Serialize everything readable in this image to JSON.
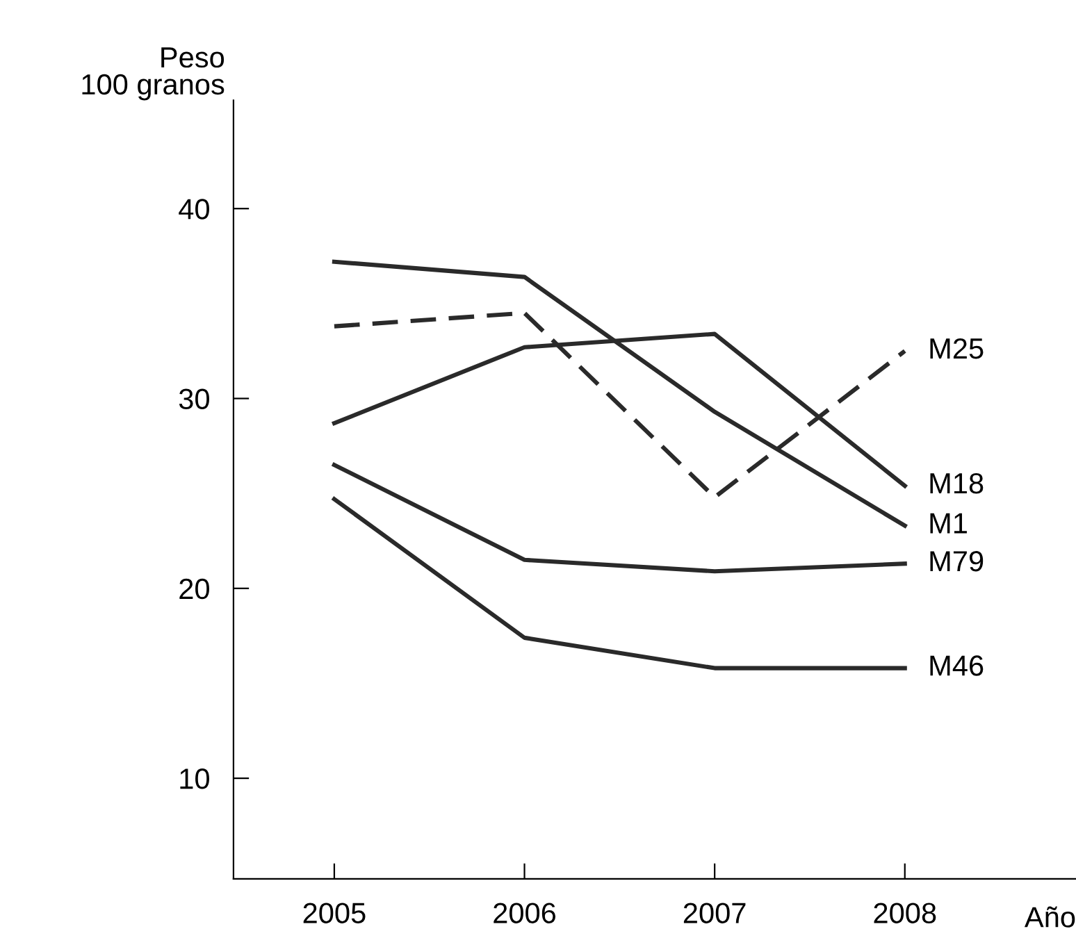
{
  "chart_data": {
    "type": "line",
    "ylabel": "Peso\n100 granos",
    "xlabel": "Año",
    "x": [
      2005,
      2006,
      2007,
      2008
    ],
    "series": [
      {
        "name": "M25",
        "color": "#2a2a2a",
        "line_style": "dashed",
        "values": [
          33.8,
          34.5,
          24.8,
          32.5
        ]
      },
      {
        "name": "M18",
        "color": "#2a2a2a",
        "line_style": "solid",
        "values": [
          28.7,
          32.7,
          33.4,
          25.4
        ]
      },
      {
        "name": "M1",
        "color": "#2a2a2a",
        "line_style": "solid",
        "values": [
          37.2,
          36.4,
          29.3,
          23.3
        ]
      },
      {
        "name": "M79",
        "color": "#2a2a2a",
        "line_style": "solid",
        "values": [
          26.5,
          21.5,
          20.9,
          21.3
        ]
      },
      {
        "name": "M46",
        "color": "#2a2a2a",
        "line_style": "solid",
        "values": [
          24.7,
          17.4,
          15.8,
          15.8
        ]
      }
    ],
    "xlim": [
      2004.47,
      2008.9
    ],
    "ylim": [
      4.7,
      45.7
    ],
    "xticks": [
      2005,
      2006,
      2007,
      2008
    ],
    "yticks": [
      10,
      20,
      30,
      40
    ],
    "grid": false,
    "legend": false,
    "marker": "none"
  }
}
